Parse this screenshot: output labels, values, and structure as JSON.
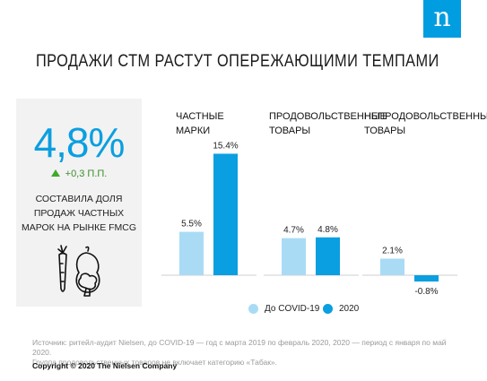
{
  "brand": {
    "logo_letter": "n",
    "color": "#009de0"
  },
  "title": "ПРОДАЖИ СТМ РАСТУТ ОПЕРЕЖАЮЩИМИ ТЕМПАМИ",
  "highlight": {
    "value": "4,8%",
    "change": "+0,3 П.П.",
    "description": "СОСТАВИЛА ДОЛЯ ПРОДАЖ ЧАСТНЫХ МАРОК НА РЫНКЕ FMCG",
    "icon": "vegetables-icon",
    "value_color": "#0a9fe0",
    "change_color": "#3faa2a"
  },
  "chart_data": {
    "type": "bar",
    "categories": [
      "ЧАСТНЫЕ МАРКИ",
      "ПРОДОВОЛЬСТВЕННЫЕ ТОВАРЫ",
      "НЕПРОДОВОЛЬСТВЕННЫЕ ТОВАРЫ"
    ],
    "series": [
      {
        "name": "До COVID-19",
        "values": [
          5.5,
          4.7,
          2.1
        ],
        "labels": [
          "5.5%",
          "4.7%",
          "2.1%"
        ],
        "color": "#a9dbf5"
      },
      {
        "name": "2020",
        "values": [
          15.4,
          4.8,
          -0.8
        ],
        "labels": [
          "15.4%",
          "4.8%",
          "-0.8%"
        ],
        "color": "#0a9fe0"
      }
    ],
    "ylim": [
      -1.5,
      16
    ],
    "grid": false,
    "legend": "bottom"
  },
  "footer": {
    "source_line1": "Источник: ритейл-аудит Nielsen, до COVID-19 — год с марта 2019 по февраль 2020, 2020 — период с января по май 2020.",
    "source_line2": "Группа продовольственных товаров не включает категорию «Табак».",
    "copyright": "Copyright © 2020 The Nielsen Company"
  }
}
